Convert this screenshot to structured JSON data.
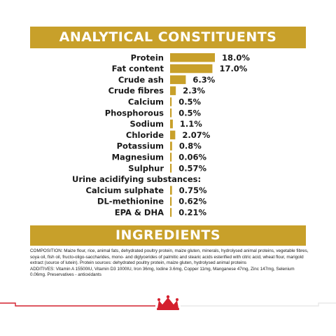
{
  "header": {
    "title": "ANALYTICAL CONSTITUENTS"
  },
  "chart_data": {
    "type": "bar",
    "orientation": "horizontal",
    "categories": [
      "Protein",
      "Fat content",
      "Crude ash",
      "Crude fibres",
      "Calcium",
      "Phosphorous",
      "Sodium",
      "Chloride",
      "Potassium",
      "Magnesium",
      "Sulphur",
      "Urine acidifying substances:",
      "Calcium sulphate",
      "DL-methionine",
      "EPA & DHA"
    ],
    "values": [
      18.0,
      17.0,
      6.3,
      2.3,
      0.5,
      0.5,
      1.1,
      2.07,
      0.8,
      0.06,
      0.57,
      null,
      0.75,
      0.62,
      0.21
    ],
    "value_labels": [
      "18.0%",
      "17.0%",
      "6.3%",
      "2.3%",
      "0.5%",
      "0.5%",
      "1.1%",
      "2.07%",
      "0.8%",
      "0.06%",
      "0.57%",
      "",
      "0.75%",
      "0.62%",
      "0.21%"
    ],
    "bar_color": "#c8a02a"
  },
  "ingredients": {
    "title": "INGREDIENTS",
    "composition": "COMPOSITION: Maize flour, rice, animal fats, dehydrated poultry protein, maize gluten, minerals, hydrolysed animal proteins, vegetable fibres, soya oil, fish oil, fructo-oligo-saccharides, mono- and diglycerides of palmitic and stearic acids esterified with citric acid, wheat flour, marigold extract (source of lutein). Protein sources: dehydrated poultry protein, maize gluten, hydrolysed animal proteins",
    "additives": "ADDITIVES: Vitamin A 15500IU, Vitamin D3 1000IU, Iron 36mg, Iodine 3.6mg, Copper 11mg, Manganese 47mg, Zinc 147mg, Selenium 0.06mg. Preservatives - antioxidants"
  },
  "footer": {
    "logo": "crown-icon",
    "line_color": "#d4202e",
    "line_light_color": "#e8e8e8"
  }
}
